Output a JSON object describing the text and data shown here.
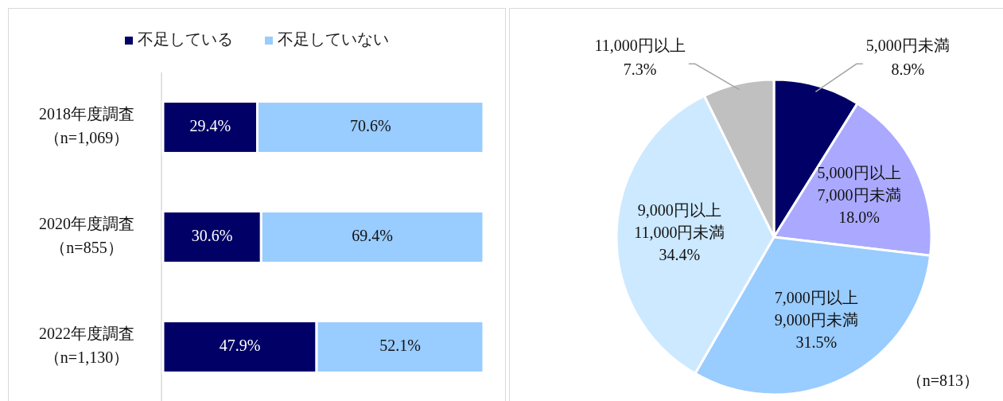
{
  "chart_data": [
    {
      "type": "bar",
      "orientation": "horizontal",
      "stacked": true,
      "legend": "top",
      "categories": [
        "2018年度調査（n=1,069）",
        "2020年度調査（n=855）",
        "2022年度調査（n=1,130）"
      ],
      "series": [
        {
          "name": "不足している",
          "color": "#000066",
          "values": [
            29.4,
            30.6,
            47.9
          ],
          "value_labels": [
            "29.4%",
            "30.6%",
            "47.9%"
          ]
        },
        {
          "name": "不足していない",
          "color": "#99ccff",
          "values": [
            70.6,
            69.4,
            52.1
          ],
          "value_labels": [
            "70.6%",
            "69.4%",
            "52.1%"
          ]
        }
      ]
    },
    {
      "type": "pie",
      "categories": [
        "5,000円未満",
        "5,000円以上7,000円未満",
        "7,000円以上9,000円未満",
        "9,000円以上11,000円未満",
        "11,000円以上"
      ],
      "values": [
        8.9,
        18.0,
        31.5,
        34.4,
        7.3
      ],
      "value_labels": [
        "8.9%",
        "18.0%",
        "31.5%",
        "34.4%",
        "7.3%"
      ],
      "colors": [
        "#000066",
        "#aaa9ff",
        "#99ccff",
        "#cce9ff",
        "#c0c0c0"
      ],
      "annotations": [
        "（n=813）"
      ]
    }
  ]
}
